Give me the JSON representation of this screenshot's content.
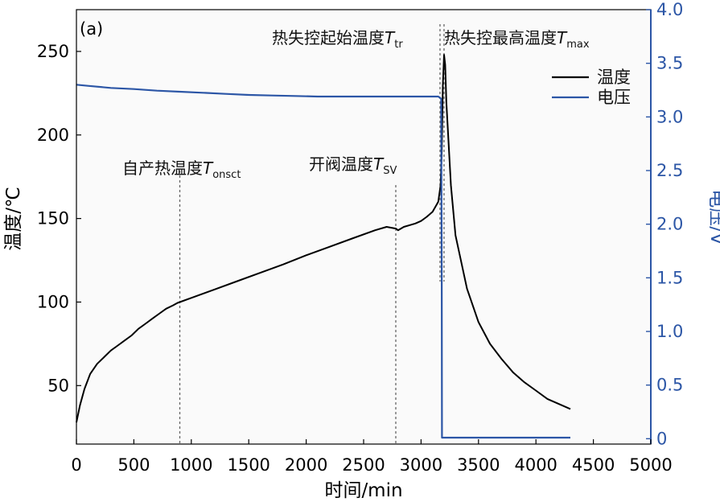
{
  "chart_data": {
    "type": "line",
    "panel_label": "(a)",
    "xlabel": "时间/min",
    "ylabel_left": "温度/℃",
    "ylabel_right": "电压/V",
    "xlim": [
      0,
      5000
    ],
    "ylim_left": [
      15,
      275
    ],
    "ylim_right": [
      -0.05,
      4.0
    ],
    "x_ticks": [
      0,
      500,
      1000,
      1500,
      2000,
      2500,
      3000,
      3500,
      4000,
      4500,
      5000
    ],
    "y_ticks_left": [
      50,
      100,
      150,
      200,
      250
    ],
    "y_ticks_right": [
      "0",
      "0.5",
      "1.0",
      "1.5",
      "2.0",
      "2.5",
      "3.0",
      "3.5",
      "4.0"
    ],
    "grid": false,
    "legend_position": "top-right",
    "colors": {
      "temperature": "#000000",
      "voltage": "#2c56a6",
      "right_axis": "#2c56a6"
    },
    "series": [
      {
        "name": "温度",
        "axis": "left",
        "x": [
          0,
          30,
          70,
          120,
          180,
          240,
          300,
          360,
          420,
          480,
          540,
          600,
          660,
          720,
          780,
          840,
          880,
          900,
          1000,
          1200,
          1400,
          1600,
          1800,
          2000,
          2200,
          2400,
          2600,
          2700,
          2780,
          2800,
          2850,
          2900,
          2950,
          3000,
          3050,
          3100,
          3150,
          3170,
          3180,
          3190,
          3200,
          3210,
          3220,
          3260,
          3300,
          3400,
          3500,
          3600,
          3700,
          3800,
          3900,
          4000,
          4100,
          4200,
          4300
        ],
        "y": [
          28,
          38,
          48,
          57,
          63,
          67,
          71,
          74,
          77,
          80,
          84,
          87,
          90,
          93,
          96,
          98,
          99.5,
          100,
          102.5,
          107.5,
          112.5,
          117.5,
          122.5,
          128,
          133,
          138,
          143,
          145,
          144,
          143,
          145,
          146,
          147,
          148.5,
          151,
          154,
          160,
          170,
          190,
          230,
          248,
          242,
          220,
          170,
          140,
          108,
          88,
          75,
          66,
          58,
          52,
          47,
          42,
          39,
          36
        ]
      },
      {
        "name": "电压",
        "axis": "right",
        "x": [
          0,
          100,
          300,
          500,
          700,
          900,
          1100,
          1300,
          1500,
          1700,
          1900,
          2100,
          2300,
          2500,
          2700,
          2900,
          3100,
          3150,
          3175,
          3180,
          3182,
          3200,
          3400,
          3800,
          4300
        ],
        "y": [
          3.3,
          3.29,
          3.27,
          3.26,
          3.245,
          3.235,
          3.225,
          3.215,
          3.205,
          3.2,
          3.195,
          3.19,
          3.19,
          3.19,
          3.19,
          3.19,
          3.19,
          3.19,
          3.17,
          1.5,
          0.01,
          0.01,
          0.01,
          0.01,
          0.01
        ]
      }
    ],
    "annotations": [
      {
        "label": "自产热温度",
        "symbol": "T",
        "sub": "onsct",
        "x": 900
      },
      {
        "label": "开阀温度",
        "symbol": "T",
        "sub": "SV",
        "x": 2780
      },
      {
        "label": "热失控起始温度",
        "symbol": "T",
        "sub": "tr",
        "x": 3165
      },
      {
        "label": "热失控最高温度",
        "symbol": "T",
        "sub": "max",
        "x": 3200
      }
    ]
  }
}
